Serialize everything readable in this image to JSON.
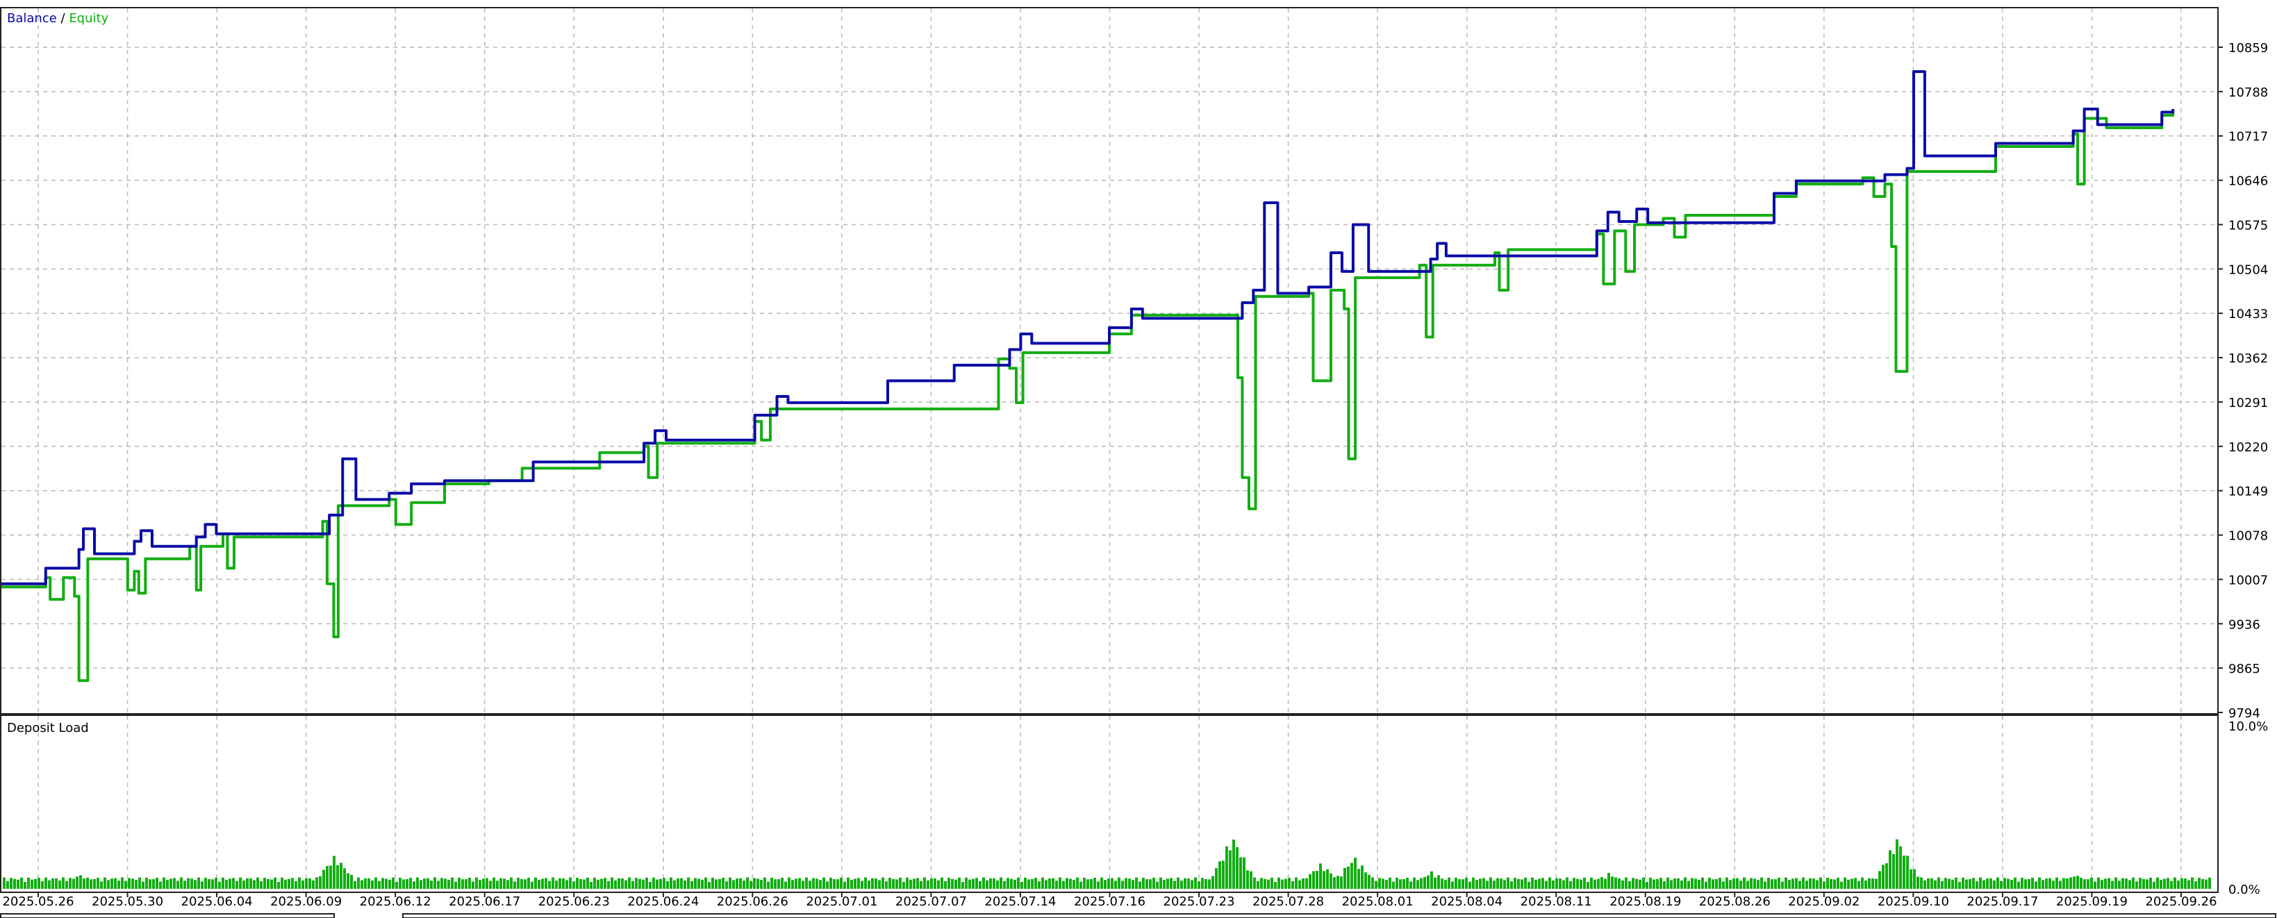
{
  "legend": {
    "balance_label": "Balance",
    "separator": " / ",
    "equity_label": "Equity"
  },
  "colors": {
    "balance": "#0a0aa6",
    "equity": "#13ad13",
    "grid": "#b9b9b9",
    "frame": "#222222",
    "text": "#000000"
  },
  "chart_data": [
    {
      "type": "line",
      "title": "",
      "legend_placement": "top-left",
      "grid": true,
      "xlabel": "",
      "ylabel": "",
      "ylim": [
        9794,
        10930
      ],
      "y_ticks": [
        "10859",
        "10788",
        "10717",
        "10646",
        "10575",
        "10504",
        "10433",
        "10362",
        "10291",
        "10220",
        "10149",
        "10078",
        "10007",
        "9936",
        "9865",
        "9794"
      ],
      "series": [
        {
          "name": "Balance",
          "color": "#0a0aa6",
          "points": [
            [
              0.0,
              10000
            ],
            [
              0.02,
              10025
            ],
            [
              0.035,
              10055
            ],
            [
              0.037,
              10088
            ],
            [
              0.042,
              10048
            ],
            [
              0.06,
              10068
            ],
            [
              0.063,
              10085
            ],
            [
              0.068,
              10060
            ],
            [
              0.088,
              10075
            ],
            [
              0.092,
              10095
            ],
            [
              0.097,
              10080
            ],
            [
              0.148,
              10110
            ],
            [
              0.154,
              10200
            ],
            [
              0.16,
              10135
            ],
            [
              0.175,
              10145
            ],
            [
              0.185,
              10160
            ],
            [
              0.2,
              10165
            ],
            [
              0.24,
              10195
            ],
            [
              0.29,
              10225
            ],
            [
              0.295,
              10245
            ],
            [
              0.3,
              10230
            ],
            [
              0.34,
              10270
            ],
            [
              0.35,
              10300
            ],
            [
              0.355,
              10290
            ],
            [
              0.4,
              10325
            ],
            [
              0.43,
              10350
            ],
            [
              0.455,
              10375
            ],
            [
              0.46,
              10400
            ],
            [
              0.465,
              10385
            ],
            [
              0.5,
              10410
            ],
            [
              0.51,
              10440
            ],
            [
              0.515,
              10425
            ],
            [
              0.56,
              10450
            ],
            [
              0.565,
              10470
            ],
            [
              0.57,
              10610
            ],
            [
              0.576,
              10465
            ],
            [
              0.59,
              10475
            ],
            [
              0.6,
              10530
            ],
            [
              0.605,
              10500
            ],
            [
              0.61,
              10575
            ],
            [
              0.617,
              10500
            ],
            [
              0.645,
              10520
            ],
            [
              0.648,
              10545
            ],
            [
              0.652,
              10525
            ],
            [
              0.72,
              10565
            ],
            [
              0.725,
              10595
            ],
            [
              0.73,
              10580
            ],
            [
              0.738,
              10600
            ],
            [
              0.743,
              10578
            ],
            [
              0.8,
              10625
            ],
            [
              0.81,
              10645
            ],
            [
              0.85,
              10655
            ],
            [
              0.86,
              10665
            ],
            [
              0.863,
              10820
            ],
            [
              0.868,
              10685
            ],
            [
              0.9,
              10705
            ],
            [
              0.935,
              10725
            ],
            [
              0.94,
              10760
            ],
            [
              0.946,
              10735
            ],
            [
              0.975,
              10755
            ],
            [
              0.98,
              10760
            ]
          ]
        },
        {
          "name": "Equity",
          "color": "#13ad13",
          "points": [
            [
              0.0,
              9995
            ],
            [
              0.02,
              10010
            ],
            [
              0.022,
              9975
            ],
            [
              0.028,
              10010
            ],
            [
              0.033,
              9980
            ],
            [
              0.035,
              9845
            ],
            [
              0.039,
              10040
            ],
            [
              0.055,
              10040
            ],
            [
              0.057,
              9990
            ],
            [
              0.06,
              10020
            ],
            [
              0.062,
              9985
            ],
            [
              0.065,
              10040
            ],
            [
              0.085,
              10060
            ],
            [
              0.088,
              9990
            ],
            [
              0.09,
              10060
            ],
            [
              0.1,
              10080
            ],
            [
              0.102,
              10025
            ],
            [
              0.105,
              10075
            ],
            [
              0.145,
              10100
            ],
            [
              0.147,
              10000
            ],
            [
              0.15,
              9915
            ],
            [
              0.152,
              10125
            ],
            [
              0.175,
              10135
            ],
            [
              0.178,
              10095
            ],
            [
              0.185,
              10130
            ],
            [
              0.2,
              10160
            ],
            [
              0.22,
              10165
            ],
            [
              0.235,
              10185
            ],
            [
              0.27,
              10210
            ],
            [
              0.29,
              10220
            ],
            [
              0.292,
              10170
            ],
            [
              0.296,
              10225
            ],
            [
              0.34,
              10260
            ],
            [
              0.343,
              10230
            ],
            [
              0.347,
              10280
            ],
            [
              0.45,
              10360
            ],
            [
              0.455,
              10345
            ],
            [
              0.458,
              10290
            ],
            [
              0.461,
              10370
            ],
            [
              0.5,
              10400
            ],
            [
              0.51,
              10430
            ],
            [
              0.555,
              10430
            ],
            [
              0.558,
              10330
            ],
            [
              0.56,
              10170
            ],
            [
              0.563,
              10120
            ],
            [
              0.566,
              10460
            ],
            [
              0.59,
              10465
            ],
            [
              0.592,
              10325
            ],
            [
              0.596,
              10325
            ],
            [
              0.6,
              10470
            ],
            [
              0.606,
              10440
            ],
            [
              0.608,
              10200
            ],
            [
              0.611,
              10490
            ],
            [
              0.64,
              10510
            ],
            [
              0.643,
              10395
            ],
            [
              0.646,
              10510
            ],
            [
              0.674,
              10530
            ],
            [
              0.676,
              10470
            ],
            [
              0.68,
              10535
            ],
            [
              0.72,
              10560
            ],
            [
              0.723,
              10480
            ],
            [
              0.728,
              10565
            ],
            [
              0.733,
              10500
            ],
            [
              0.737,
              10575
            ],
            [
              0.75,
              10585
            ],
            [
              0.755,
              10555
            ],
            [
              0.76,
              10590
            ],
            [
              0.8,
              10620
            ],
            [
              0.81,
              10640
            ],
            [
              0.84,
              10650
            ],
            [
              0.845,
              10620
            ],
            [
              0.85,
              10640
            ],
            [
              0.853,
              10540
            ],
            [
              0.855,
              10340
            ],
            [
              0.86,
              10660
            ],
            [
              0.9,
              10700
            ],
            [
              0.935,
              10720
            ],
            [
              0.937,
              10640
            ],
            [
              0.94,
              10745
            ],
            [
              0.95,
              10730
            ],
            [
              0.975,
              10750
            ],
            [
              0.98,
              10755
            ]
          ]
        }
      ]
    },
    {
      "type": "bar",
      "title": "Deposit Load",
      "ylim": [
        0,
        10
      ],
      "y_ticks": [
        "10.0%",
        "0.0%"
      ],
      "spikes": [
        [
          0.035,
          0.9
        ],
        [
          0.085,
          0.5
        ],
        [
          0.1,
          0.4
        ],
        [
          0.15,
          2.1
        ],
        [
          0.555,
          3.3
        ],
        [
          0.595,
          1.6
        ],
        [
          0.61,
          2.0
        ],
        [
          0.645,
          1.1
        ],
        [
          0.725,
          1.0
        ],
        [
          0.855,
          3.2
        ],
        [
          0.935,
          0.9
        ]
      ],
      "baseline": 0.7
    }
  ],
  "x_axis": {
    "ticks": [
      "2025.05.26",
      "2025.05.30",
      "2025.06.04",
      "2025.06.09",
      "2025.06.12",
      "2025.06.17",
      "2025.06.23",
      "2025.06.24",
      "2025.06.26",
      "2025.07.01",
      "2025.07.07",
      "2025.07.14",
      "2025.07.16",
      "2025.07.23",
      "2025.07.28",
      "2025.08.01",
      "2025.08.04",
      "2025.08.11",
      "2025.08.19",
      "2025.08.26",
      "2025.09.02",
      "2025.09.10",
      "2025.09.17",
      "2025.09.19",
      "2025.09.26"
    ]
  }
}
